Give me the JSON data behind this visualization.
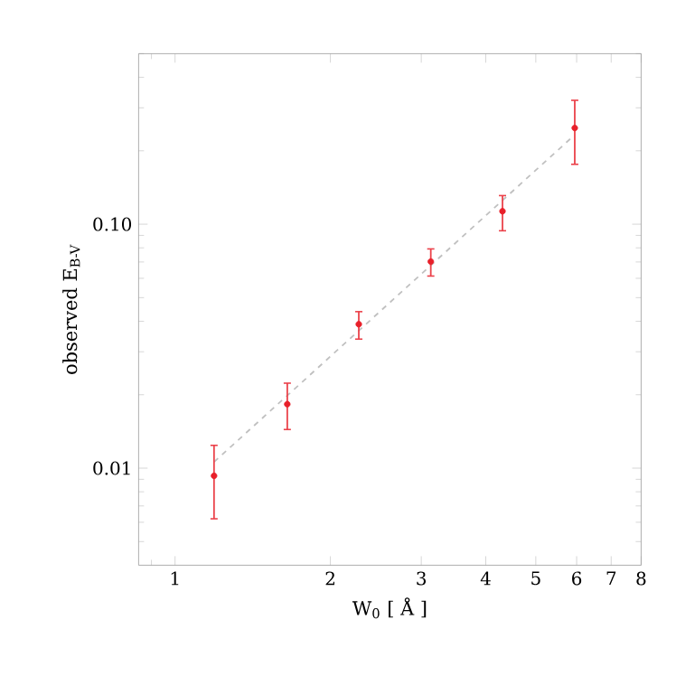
{
  "chart_data": {
    "type": "scatter",
    "xlabel": "W$_{0}$ [ Å ]",
    "ylabel": "observed E$_{B-V}$",
    "log": "xy",
    "xlim": [
      0.85,
      8
    ],
    "ylim": [
      0.004,
      0.5
    ],
    "xticks": [
      1,
      2,
      3,
      4,
      5,
      6,
      7,
      8
    ],
    "yticks": [
      0.01,
      {
        "value": 0.1,
        "label": "0.10"
      }
    ],
    "series": [
      {
        "type": "line",
        "color": "#c0c0c0",
        "line_style": "dashed",
        "marker": "none",
        "x": [
          1.19,
          5.85
        ],
        "values": [
          0.0106,
          0.225
        ]
      },
      {
        "color": "#e8202a",
        "marker": "circle",
        "x": [
          1.19,
          1.65,
          2.27,
          3.13,
          4.31,
          5.95
        ],
        "values": [
          0.0093,
          0.0183,
          0.0389,
          0.0703,
          0.113,
          0.248
        ],
        "errors": [
          [
            0.0062,
            0.0124
          ],
          [
            0.0144,
            0.0223
          ],
          [
            0.0338,
            0.0438
          ],
          [
            0.0613,
            0.0792
          ],
          [
            0.094,
            0.131
          ],
          [
            0.176,
            0.322
          ]
        ]
      }
    ]
  }
}
